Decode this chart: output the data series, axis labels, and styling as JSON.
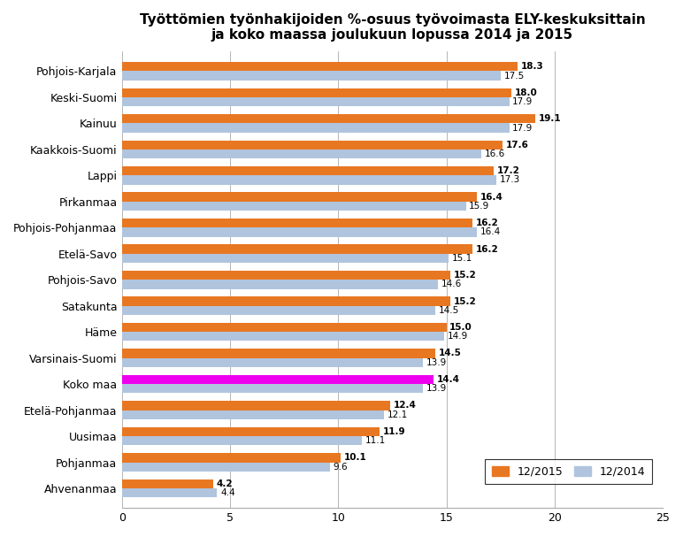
{
  "title": "Työttömien työnhakijoiden %-osuus työvoimasta ELY-keskuksittain\nja koko maassa joulukuun lopussa 2014 ja 2015",
  "categories": [
    "Pohjois-Karjala",
    "Keski-Suomi",
    "Kainuu",
    "Kaakkois-Suomi",
    "Lappi",
    "Pirkanmaa",
    "Pohjois-Pohjanmaa",
    "Etelä-Savo",
    "Pohjois-Savo",
    "Satakunta",
    "Häme",
    "Varsinais-Suomi",
    "Koko maa",
    "Etelä-Pohjanmaa",
    "Uusimaa",
    "Pohjanmaa",
    "Ahvenanmaa"
  ],
  "values_2015": [
    18.3,
    18.0,
    19.1,
    17.6,
    17.2,
    16.4,
    16.2,
    16.2,
    15.2,
    15.2,
    15.0,
    14.5,
    14.4,
    12.4,
    11.9,
    10.1,
    4.2
  ],
  "values_2014": [
    17.5,
    17.9,
    17.9,
    16.6,
    17.3,
    15.9,
    16.4,
    15.1,
    14.6,
    14.5,
    14.9,
    13.9,
    13.9,
    12.1,
    11.1,
    9.6,
    4.4
  ],
  "color_2015": "#E87722",
  "color_2014": "#B0C4DE",
  "color_koko_maa_2015": "#EE00EE",
  "xlim": [
    0,
    25
  ],
  "xticks": [
    0,
    5,
    10,
    15,
    20,
    25
  ],
  "bar_height": 0.35,
  "label_2015": "12/2015",
  "label_2014": "12/2014",
  "figsize": [
    7.72,
    6.07
  ],
  "dpi": 100,
  "bg_color": "#FFFFFF"
}
